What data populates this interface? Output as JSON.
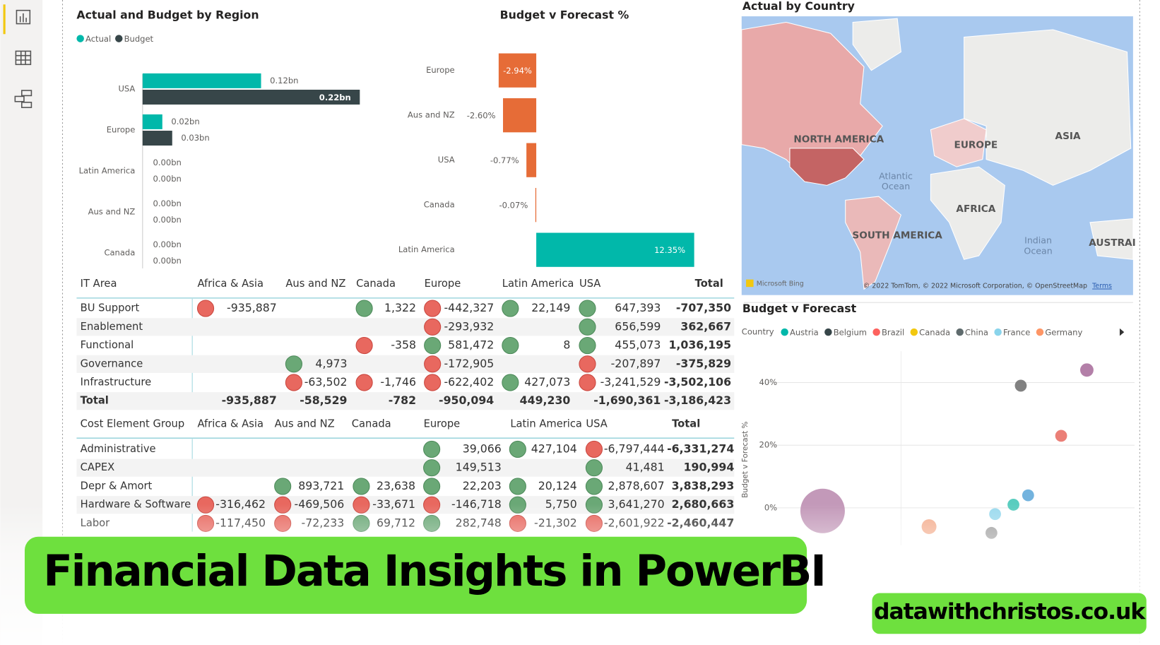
{
  "chart_data": [
    {
      "type": "bar",
      "orientation": "horizontal",
      "title": "Actual and Budget by Region",
      "categories": [
        "USA",
        "Europe",
        "Latin America",
        "Aus and NZ",
        "Canada"
      ],
      "series": [
        {
          "name": "Actual",
          "color": "#01b8aa",
          "values": [
            0.12,
            0.02,
            0.0,
            0.0,
            0.0
          ],
          "value_labels": [
            "0.12bn",
            "0.02bn",
            "0.00bn",
            "0.00bn",
            "0.00bn"
          ]
        },
        {
          "name": "Budget",
          "color": "#374649",
          "values": [
            0.22,
            0.03,
            0.0,
            0.0,
            0.0
          ],
          "value_labels": [
            "0.22bn",
            "0.03bn",
            "0.00bn",
            "0.00bn",
            "0.00bn"
          ]
        }
      ]
    },
    {
      "type": "diverging-bar",
      "title": "Budget v Forecast %",
      "categories": [
        "Europe",
        "Aus and NZ",
        "USA",
        "Canada",
        "Latin America"
      ],
      "values": [
        -2.94,
        -2.6,
        -0.77,
        -0.07,
        12.35
      ],
      "value_labels": [
        "-2.94%",
        "-2.60%",
        "-0.77%",
        "-0.07%",
        "12.35%"
      ],
      "negative_color": "#e66c37",
      "positive_color": "#01b8aa"
    },
    {
      "type": "scatter",
      "title": "Budget v Forecast",
      "legend_title": "Country",
      "legend": [
        {
          "name": "Austria",
          "color": "#01b8aa"
        },
        {
          "name": "Belgium",
          "color": "#374649"
        },
        {
          "name": "Brazil",
          "color": "#fd625e"
        },
        {
          "name": "Canada",
          "color": "#f2c80f"
        },
        {
          "name": "China",
          "color": "#5f6b6d"
        },
        {
          "name": "France",
          "color": "#8ad4eb"
        },
        {
          "name": "Germany",
          "color": "#fe9666"
        }
      ],
      "y_label": "Budget v Forecast %",
      "ylim": [
        -12,
        50
      ],
      "yticks": [
        {
          "value": 0,
          "label": "0%"
        },
        {
          "value": 20,
          "label": "20%"
        },
        {
          "value": 40,
          "label": "40%"
        }
      ],
      "xlim": [
        0,
        100
      ],
      "x": [
        15,
        44,
        61,
        62,
        67,
        71,
        69,
        80,
        87
      ],
      "y": [
        -1,
        -6,
        -8,
        -2,
        1,
        4,
        39,
        23,
        44
      ],
      "sizes": [
        30,
        10,
        8,
        8,
        8,
        8,
        8,
        8,
        9
      ],
      "colors": [
        "#b887ad",
        "#f2a07b",
        "#8c8c8c",
        "#8ad4eb",
        "#3cc4b4",
        "#5aa6d8",
        "#6b6b6b",
        "#e8685f",
        "#a66999"
      ],
      "grid": true
    }
  ],
  "map": {
    "title": "Actual by Country",
    "labels": [
      "NORTH AMERICA",
      "EUROPE",
      "ASIA",
      "AFRICA",
      "SOUTH AMERICA",
      "AUSTRAI"
    ],
    "ocean_labels": [
      [
        "Atlantic",
        "Ocean"
      ],
      [
        "Indian",
        "Ocean"
      ]
    ],
    "provider": "Microsoft Bing",
    "attribution": "© 2022 TomTom, © 2022 Microsoft Corporation, © OpenStreetMap",
    "terms": "Terms"
  },
  "tables": [
    {
      "header": [
        "IT Area",
        "Africa & Asia",
        "Aus and NZ",
        "Canada",
        "Europe",
        "Latin America",
        "USA",
        "Total"
      ],
      "rows": [
        [
          "BU Support",
          "-935,887",
          null,
          "1,322",
          "-442,327",
          "22,149",
          "647,393",
          "-707,350"
        ],
        [
          "Enablement",
          null,
          null,
          null,
          "-293,932",
          null,
          "656,599",
          "362,667"
        ],
        [
          "Functional",
          null,
          null,
          "-358",
          "581,472",
          "8",
          "455,073",
          "1,036,195"
        ],
        [
          "Governance",
          null,
          "4,973",
          null,
          "-172,905",
          null,
          "-207,897",
          "-375,829"
        ],
        [
          "Infrastructure",
          null,
          "-63,502",
          "-1,746",
          "-622,402",
          "427,073",
          "-3,241,529",
          "-3,502,106"
        ],
        [
          "Total",
          "-935,887",
          "-58,529",
          "-782",
          "-950,094",
          "449,230",
          "-1,690,361",
          "-3,186,423"
        ]
      ]
    },
    {
      "header": [
        "Cost Element Group",
        "Africa & Asia",
        "Aus and NZ",
        "Canada",
        "Europe",
        "Latin America",
        "USA",
        "Total"
      ],
      "rows": [
        [
          "Administrative",
          null,
          null,
          null,
          "39,066",
          "427,104",
          "-6,797,444",
          "-6,331,274"
        ],
        [
          "CAPEX",
          null,
          null,
          null,
          "149,513",
          null,
          "41,481",
          "190,994"
        ],
        [
          "Depr & Amort",
          null,
          "893,721",
          "23,638",
          "22,203",
          "20,124",
          "2,878,607",
          "3,838,293"
        ],
        [
          "Hardware & Software",
          "-316,462",
          "-469,506",
          "-33,671",
          "-146,718",
          "5,750",
          "3,641,270",
          "2,680,663"
        ],
        [
          "Labor",
          "-117,450",
          "-72,233",
          "69,712",
          "282,748",
          "-21,302",
          "-2,601,922",
          "-2,460,447"
        ]
      ]
    }
  ],
  "banner": {
    "title": "Financial Data Insights in PowerBI",
    "site": "datawithchristos.co.uk"
  }
}
